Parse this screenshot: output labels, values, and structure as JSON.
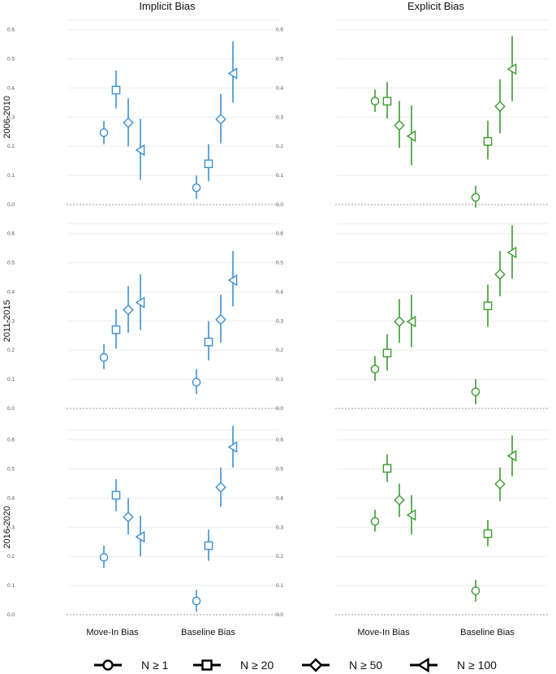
{
  "chart_data": {
    "type": "scatter",
    "columns": [
      "Implicit Bias",
      "Explicit Bias"
    ],
    "rows": [
      "2006-2010",
      "2011-2015",
      "2016-2020"
    ],
    "categories": [
      "Move-In Bias",
      "Baseline Bias"
    ],
    "yticks": [
      "0.0",
      "0.1",
      "0.2",
      "0.3",
      "0.4",
      "0.5",
      "0.6"
    ],
    "ylim": [
      0,
      0.6
    ],
    "colors": {
      "Implicit Bias": "#3d8fd1",
      "Explicit Bias": "#3a9a32"
    },
    "legend": {
      "position": "bottom",
      "entries": [
        {
          "label": "N ≥ 1",
          "shape": "circle"
        },
        {
          "label": "N ≥ 20",
          "shape": "square"
        },
        {
          "label": "N ≥ 50",
          "shape": "diamond"
        },
        {
          "label": "N ≥ 100",
          "shape": "triangle"
        }
      ]
    },
    "panels": [
      {
        "row": "2006-2010",
        "column": "Implicit Bias",
        "points": [
          {
            "category": "Move-In Bias",
            "group": "N ≥ 1",
            "value": 0.247,
            "low": 0.207,
            "high": 0.287
          },
          {
            "category": "Move-In Bias",
            "group": "N ≥ 20",
            "value": 0.393,
            "low": 0.33,
            "high": 0.46
          },
          {
            "category": "Move-In Bias",
            "group": "N ≥ 50",
            "value": 0.281,
            "low": 0.2,
            "high": 0.365
          },
          {
            "category": "Move-In Bias",
            "group": "N ≥ 100",
            "value": 0.187,
            "low": 0.085,
            "high": 0.295
          },
          {
            "category": "Baseline Bias",
            "group": "N ≥ 1",
            "value": 0.058,
            "low": 0.02,
            "high": 0.1
          },
          {
            "category": "Baseline Bias",
            "group": "N ≥ 20",
            "value": 0.14,
            "low": 0.08,
            "high": 0.207
          },
          {
            "category": "Baseline Bias",
            "group": "N ≥ 50",
            "value": 0.293,
            "low": 0.21,
            "high": 0.38
          },
          {
            "category": "Baseline Bias",
            "group": "N ≥ 100",
            "value": 0.45,
            "low": 0.35,
            "high": 0.56
          }
        ]
      },
      {
        "row": "2006-2010",
        "column": "Explicit Bias",
        "points": [
          {
            "category": "Move-In Bias",
            "group": "N ≥ 1",
            "value": 0.355,
            "low": 0.318,
            "high": 0.395
          },
          {
            "category": "Move-In Bias",
            "group": "N ≥ 20",
            "value": 0.355,
            "low": 0.295,
            "high": 0.42
          },
          {
            "category": "Move-In Bias",
            "group": "N ≥ 50",
            "value": 0.272,
            "low": 0.195,
            "high": 0.356
          },
          {
            "category": "Move-In Bias",
            "group": "N ≥ 100",
            "value": 0.235,
            "low": 0.135,
            "high": 0.34
          },
          {
            "category": "Baseline Bias",
            "group": "N ≥ 1",
            "value": 0.025,
            "low": -0.01,
            "high": 0.065
          },
          {
            "category": "Baseline Bias",
            "group": "N ≥ 20",
            "value": 0.217,
            "low": 0.155,
            "high": 0.288
          },
          {
            "category": "Baseline Bias",
            "group": "N ≥ 50",
            "value": 0.337,
            "low": 0.245,
            "high": 0.43
          },
          {
            "category": "Baseline Bias",
            "group": "N ≥ 100",
            "value": 0.465,
            "low": 0.355,
            "high": 0.578
          }
        ]
      },
      {
        "row": "2011-2015",
        "column": "Implicit Bias",
        "points": [
          {
            "category": "Move-In Bias",
            "group": "N ≥ 1",
            "value": 0.175,
            "low": 0.135,
            "high": 0.22
          },
          {
            "category": "Move-In Bias",
            "group": "N ≥ 20",
            "value": 0.27,
            "low": 0.205,
            "high": 0.34
          },
          {
            "category": "Move-In Bias",
            "group": "N ≥ 50",
            "value": 0.338,
            "low": 0.26,
            "high": 0.42
          },
          {
            "category": "Move-In Bias",
            "group": "N ≥ 100",
            "value": 0.363,
            "low": 0.27,
            "high": 0.46
          },
          {
            "category": "Baseline Bias",
            "group": "N ≥ 1",
            "value": 0.09,
            "low": 0.05,
            "high": 0.135
          },
          {
            "category": "Baseline Bias",
            "group": "N ≥ 20",
            "value": 0.228,
            "low": 0.165,
            "high": 0.3
          },
          {
            "category": "Baseline Bias",
            "group": "N ≥ 50",
            "value": 0.305,
            "low": 0.225,
            "high": 0.39
          },
          {
            "category": "Baseline Bias",
            "group": "N ≥ 100",
            "value": 0.44,
            "low": 0.35,
            "high": 0.54
          }
        ]
      },
      {
        "row": "2011-2015",
        "column": "Explicit Bias",
        "points": [
          {
            "category": "Move-In Bias",
            "group": "N ≥ 1",
            "value": 0.135,
            "low": 0.095,
            "high": 0.18
          },
          {
            "category": "Move-In Bias",
            "group": "N ≥ 20",
            "value": 0.19,
            "low": 0.13,
            "high": 0.255
          },
          {
            "category": "Move-In Bias",
            "group": "N ≥ 50",
            "value": 0.298,
            "low": 0.225,
            "high": 0.375
          },
          {
            "category": "Move-In Bias",
            "group": "N ≥ 100",
            "value": 0.298,
            "low": 0.21,
            "high": 0.39
          },
          {
            "category": "Baseline Bias",
            "group": "N ≥ 1",
            "value": 0.057,
            "low": 0.015,
            "high": 0.1
          },
          {
            "category": "Baseline Bias",
            "group": "N ≥ 20",
            "value": 0.352,
            "low": 0.28,
            "high": 0.425
          },
          {
            "category": "Baseline Bias",
            "group": "N ≥ 50",
            "value": 0.46,
            "low": 0.385,
            "high": 0.54
          },
          {
            "category": "Baseline Bias",
            "group": "N ≥ 100",
            "value": 0.535,
            "low": 0.445,
            "high": 0.628
          }
        ]
      },
      {
        "row": "2016-2020",
        "column": "Implicit Bias",
        "points": [
          {
            "category": "Move-In Bias",
            "group": "N ≥ 1",
            "value": 0.197,
            "low": 0.16,
            "high": 0.237
          },
          {
            "category": "Move-In Bias",
            "group": "N ≥ 20",
            "value": 0.41,
            "low": 0.355,
            "high": 0.465
          },
          {
            "category": "Move-In Bias",
            "group": "N ≥ 50",
            "value": 0.335,
            "low": 0.275,
            "high": 0.4
          },
          {
            "category": "Move-In Bias",
            "group": "N ≥ 100",
            "value": 0.267,
            "low": 0.2,
            "high": 0.34
          },
          {
            "category": "Baseline Bias",
            "group": "N ≥ 1",
            "value": 0.047,
            "low": 0.01,
            "high": 0.085
          },
          {
            "category": "Baseline Bias",
            "group": "N ≥ 20",
            "value": 0.237,
            "low": 0.185,
            "high": 0.292
          },
          {
            "category": "Baseline Bias",
            "group": "N ≥ 50",
            "value": 0.437,
            "low": 0.37,
            "high": 0.505
          },
          {
            "category": "Baseline Bias",
            "group": "N ≥ 100",
            "value": 0.575,
            "low": 0.505,
            "high": 0.648
          }
        ]
      },
      {
        "row": "2016-2020",
        "column": "Explicit Bias",
        "points": [
          {
            "category": "Move-In Bias",
            "group": "N ≥ 1",
            "value": 0.32,
            "low": 0.285,
            "high": 0.36
          },
          {
            "category": "Move-In Bias",
            "group": "N ≥ 20",
            "value": 0.502,
            "low": 0.455,
            "high": 0.55
          },
          {
            "category": "Move-In Bias",
            "group": "N ≥ 50",
            "value": 0.393,
            "low": 0.335,
            "high": 0.45
          },
          {
            "category": "Move-In Bias",
            "group": "N ≥ 100",
            "value": 0.342,
            "low": 0.275,
            "high": 0.41
          },
          {
            "category": "Baseline Bias",
            "group": "N ≥ 1",
            "value": 0.082,
            "low": 0.045,
            "high": 0.12
          },
          {
            "category": "Baseline Bias",
            "group": "N ≥ 20",
            "value": 0.278,
            "low": 0.235,
            "high": 0.325
          },
          {
            "category": "Baseline Bias",
            "group": "N ≥ 50",
            "value": 0.448,
            "low": 0.39,
            "high": 0.505
          },
          {
            "category": "Baseline Bias",
            "group": "N ≥ 100",
            "value": 0.545,
            "low": 0.475,
            "high": 0.615
          }
        ]
      }
    ]
  }
}
